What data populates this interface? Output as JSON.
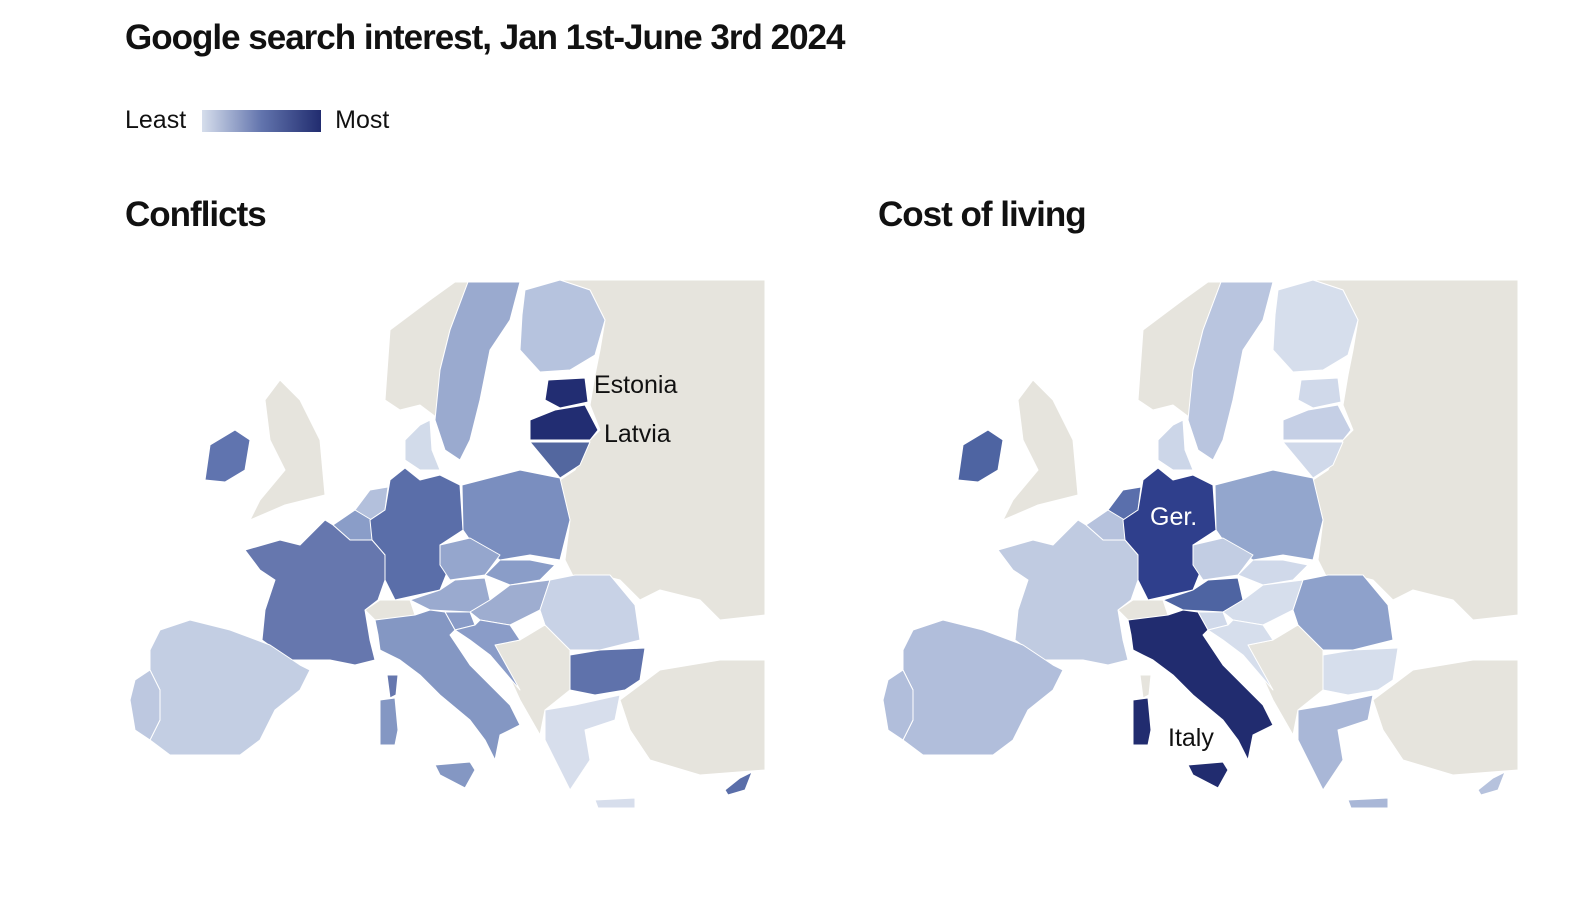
{
  "title": "Google search interest, Jan 1st-June 3rd 2024",
  "legend": {
    "least": "Least",
    "most": "Most",
    "color_low": "#d6deec",
    "color_high": "#212c6f"
  },
  "no_data_color": "#e6e4dd",
  "maps": [
    {
      "id": "conflicts",
      "title": "Conflicts",
      "labels": [
        {
          "country": "Estonia",
          "text": "Estonia"
        },
        {
          "country": "Latvia",
          "text": "Latvia"
        }
      ],
      "fills": {
        "Estonia": "#222d72",
        "Latvia": "#222d72",
        "Lithuania": "#53679f",
        "Sweden": "#9aaacf",
        "Finland": "#b6c3de",
        "Ireland": "#6074af",
        "Germany": "#5a6ea9",
        "France": "#6677ae",
        "Poland": "#7a8ebf",
        "Czechia": "#95a6cd",
        "Slovakia": "#8a9dc8",
        "Austria": "#9aaacf",
        "Hungary": "#9eadd0",
        "Slovenia": "#8a9cc8",
        "Croatia": "#8a9cc8",
        "Romania": "#c8d2e6",
        "Bulgaria": "#5f72ab",
        "Greece": "#d7deec",
        "Crete": "#d7deec",
        "Italy": "#8497c3",
        "Sicily": "#8497c3",
        "Sardinia": "#8497c3",
        "Corsica": "#6677ae",
        "Spain": "#c3cee3",
        "Portugal": "#bdc8e0",
        "Netherlands": "#b3c0dc",
        "Belgium": "#8a9dc8",
        "Denmark": "#d2dbea",
        "Cyprus": "#5a6ea9"
      }
    },
    {
      "id": "cost-of-living",
      "title": "Cost of living",
      "labels": [
        {
          "country": "Germany",
          "text": "Ger."
        },
        {
          "country": "Italy",
          "text": "Italy"
        }
      ],
      "fills": {
        "Estonia": "#d0d9ea",
        "Latvia": "#c5cfe5",
        "Lithuania": "#d0d9ea",
        "Sweden": "#b9c5df",
        "Finland": "#d6deec",
        "Ireland": "#4e64a2",
        "Germany": "#2f3f8c",
        "France": "#c0cbe1",
        "Poland": "#93a6cd",
        "Czechia": "#c2cde3",
        "Slovakia": "#d0d9ea",
        "Austria": "#4e64a2",
        "Hungary": "#d6deec",
        "Slovenia": "#d0d9ea",
        "Croatia": "#d6deec",
        "Romania": "#8ea1cb",
        "Bulgaria": "#d6deec",
        "Greece": "#a9b7d7",
        "Crete": "#a9b7d7",
        "Italy": "#212c6f",
        "Sicily": "#212c6f",
        "Sardinia": "#212c6f",
        "Corsica": "#e6e4dd",
        "Spain": "#b1bedb",
        "Portugal": "#b1bedb",
        "Netherlands": "#5a6fac",
        "Belgium": "#b6c2dd",
        "Denmark": "#ccd6e8",
        "Cyprus": "#b6c2dd"
      }
    }
  ]
}
